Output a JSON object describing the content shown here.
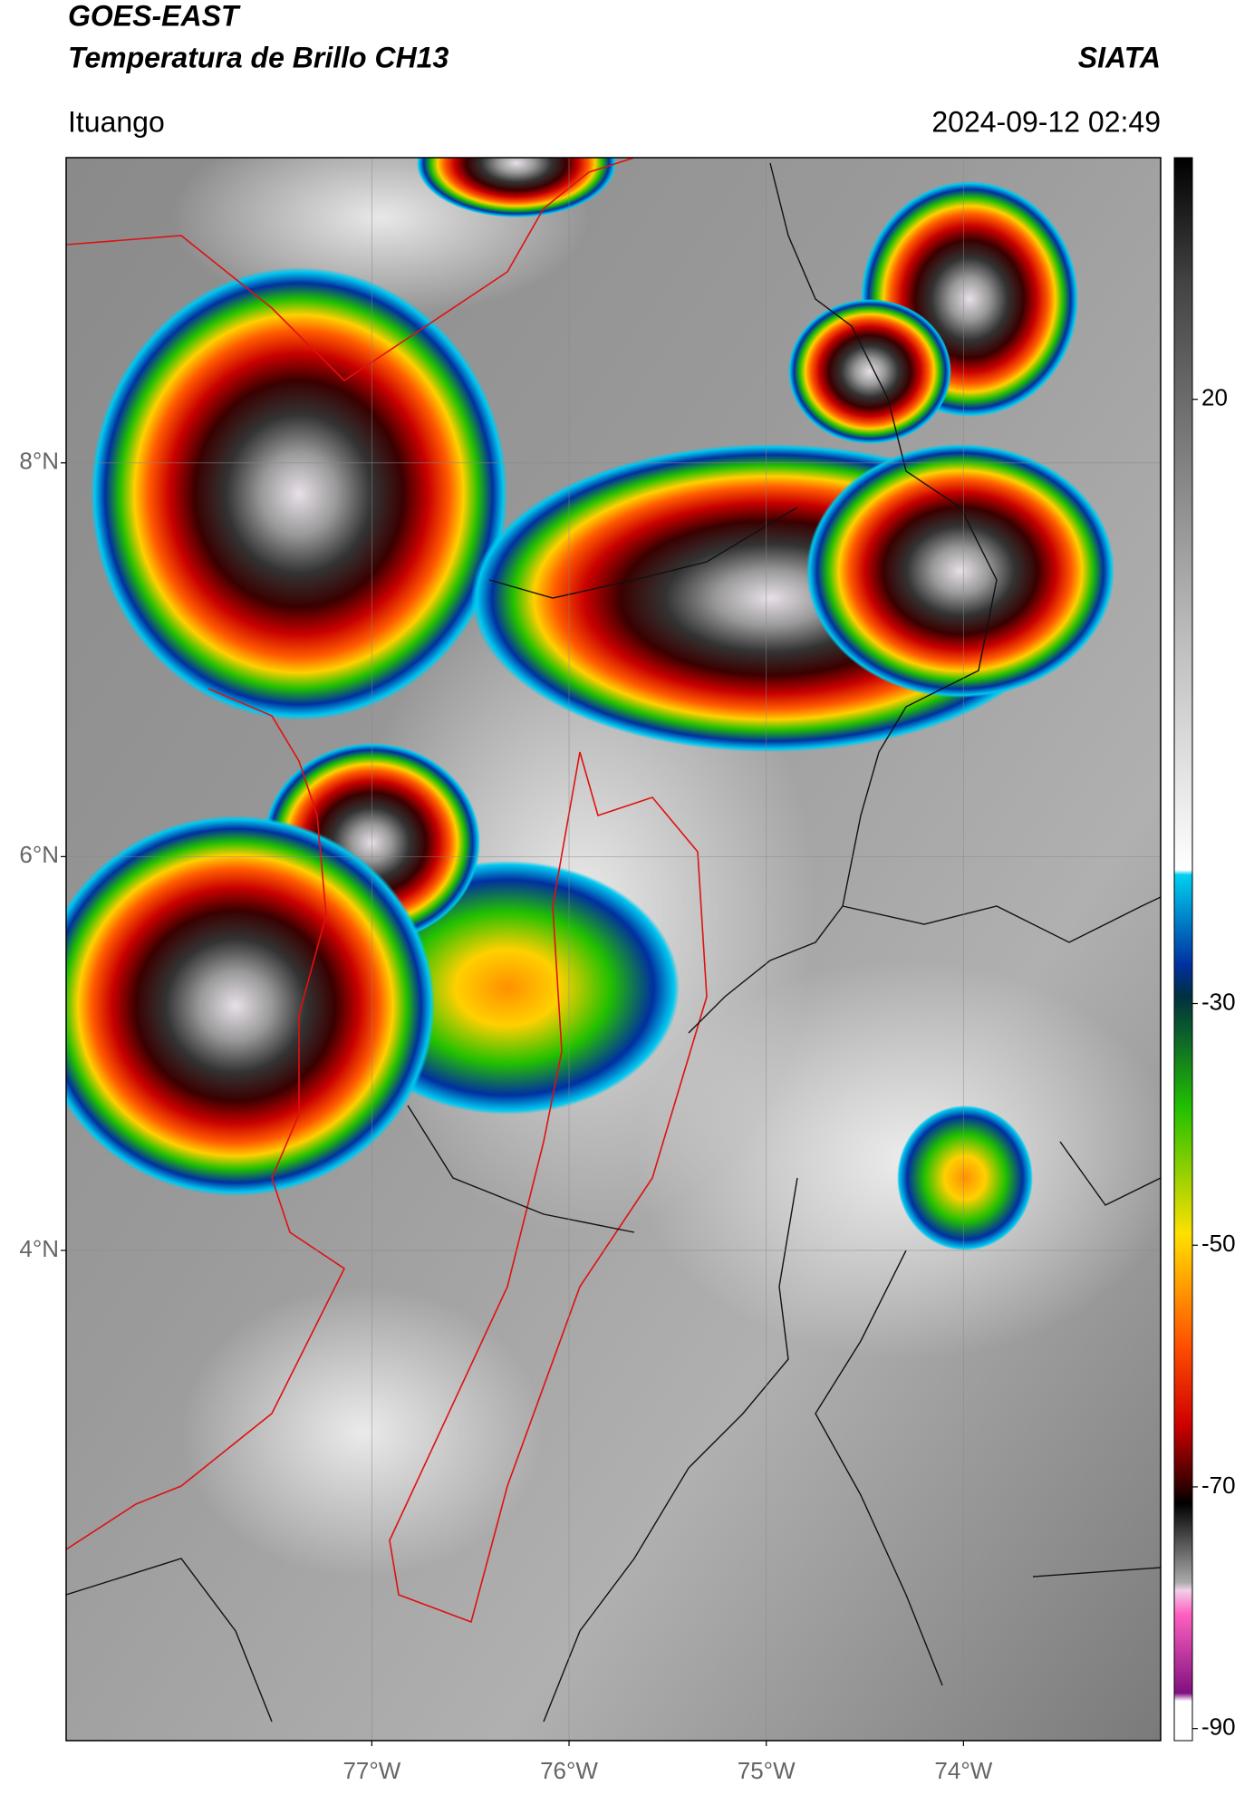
{
  "header": {
    "title": "GOES-EAST",
    "subtitle": "Temperatura de Brillo CH13",
    "source": "SIATA",
    "location": "Ituango",
    "datetime": "2024-09-12 02:49"
  },
  "map": {
    "xlim": [
      -78.55,
      -73.0
    ],
    "ylim": [
      1.51,
      9.55
    ],
    "xticks": [
      {
        "value": -77,
        "label": "77°W"
      },
      {
        "value": -76,
        "label": "76°W"
      },
      {
        "value": -75,
        "label": "75°W"
      },
      {
        "value": -74,
        "label": "74°W"
      }
    ],
    "yticks": [
      {
        "value": 8,
        "label": "8°N"
      },
      {
        "value": 6,
        "label": "6°N"
      },
      {
        "value": 4,
        "label": "4°N"
      }
    ],
    "grid": true
  },
  "colorbar": {
    "ylim": [
      -91,
      40
    ],
    "yticks": [
      20,
      -30,
      -50,
      -70,
      -90
    ]
  }
}
